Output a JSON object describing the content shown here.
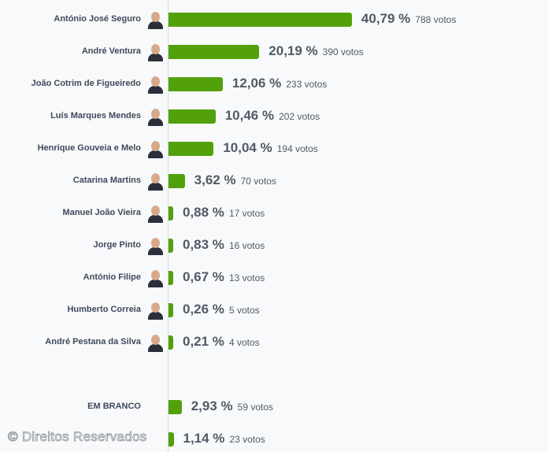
{
  "chart_data": {
    "type": "bar",
    "orientation": "horizontal",
    "unit_suffix": " %",
    "votes_suffix": "votos",
    "bar_color": "#52a00a",
    "categories": [
      "António José Seguro",
      "André Ventura",
      "João Cotrim de Figueiredo",
      "Luís Marques Mendes",
      "Henrique Gouveia e Melo",
      "Catarina Martins",
      "Manuel João Vieira",
      "Jorge Pinto",
      "António Filipe",
      "Humberto Correia",
      "André Pestana da Silva",
      "EM BRANCO",
      ""
    ],
    "values": [
      40.79,
      20.19,
      12.06,
      10.46,
      10.04,
      3.62,
      0.88,
      0.83,
      0.67,
      0.26,
      0.21,
      2.93,
      1.14
    ],
    "labels": [
      "40,79 %",
      "20,19 %",
      "12,06 %",
      "10,46 %",
      "10,04 %",
      "3,62 %",
      "0,88 %",
      "0,83 %",
      "0,67 %",
      "0,26 %",
      "0,21 %",
      "2,93 %",
      "1,14 %"
    ],
    "votes": [
      "788 votos",
      "390 votos",
      "233 votos",
      "202 votos",
      "194 votos",
      "70 votos",
      "17 votos",
      "16 votos",
      "13 votos",
      "5 votos",
      "4 votos",
      "59 votos",
      "23 votos"
    ],
    "has_photo": [
      true,
      true,
      true,
      true,
      true,
      true,
      true,
      true,
      true,
      true,
      true,
      false,
      false
    ]
  },
  "watermark": "© Direitos Reservados"
}
